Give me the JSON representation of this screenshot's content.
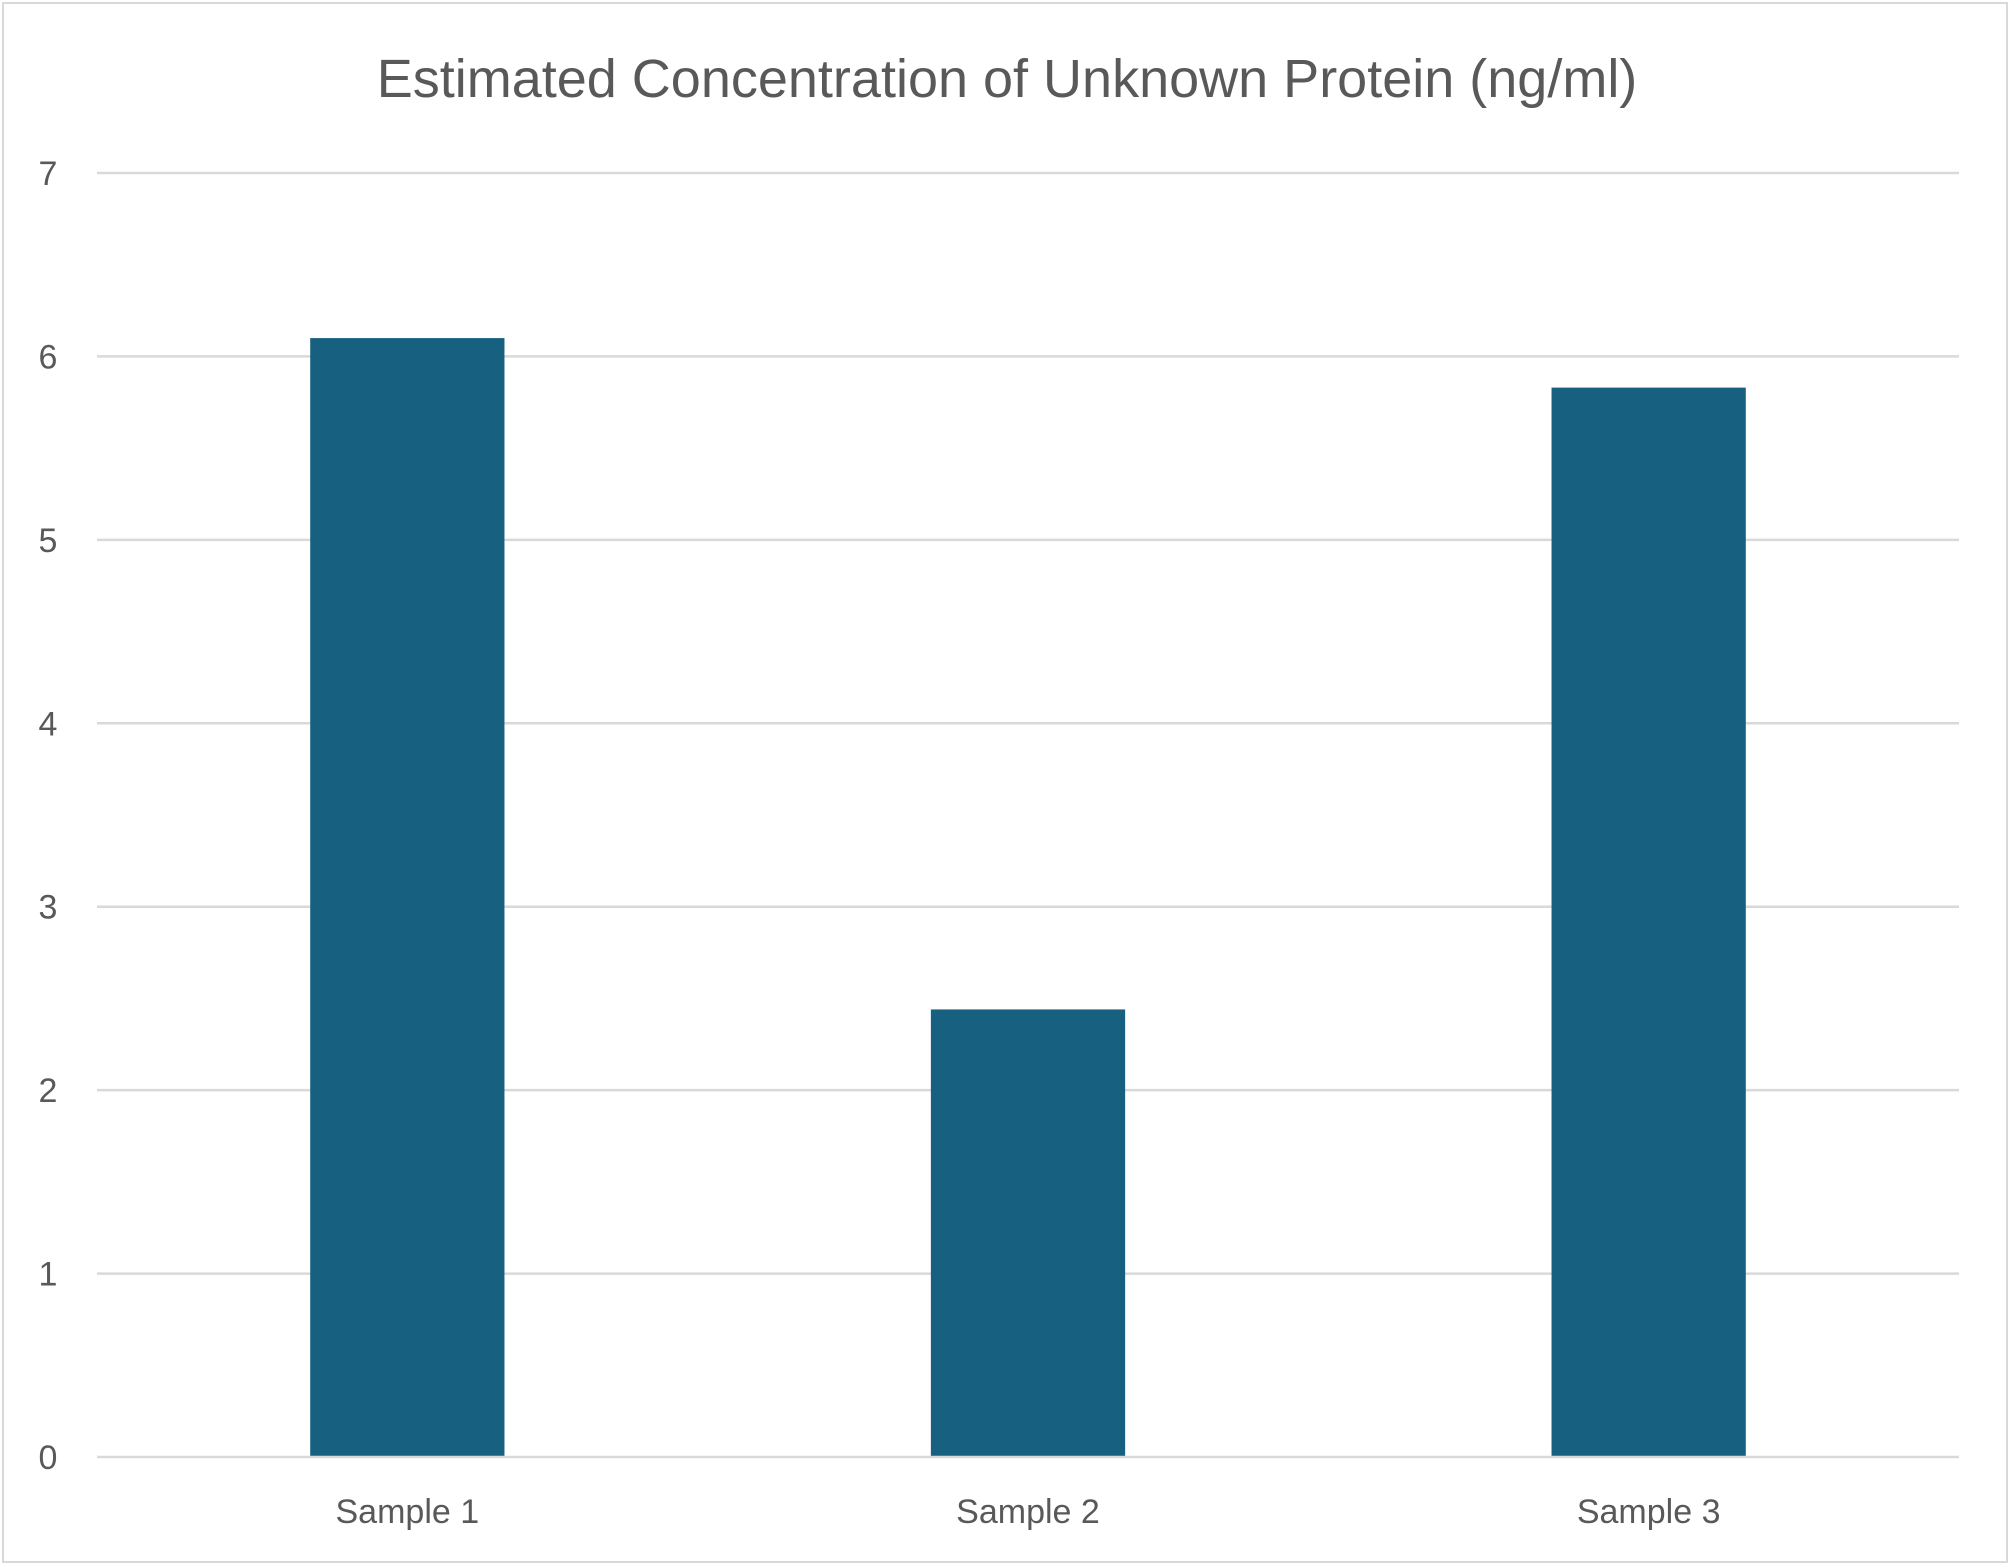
{
  "chart_data": {
    "type": "bar",
    "title": "Estimated Concentration of Unknown Protein (ng/ml)",
    "categories": [
      "Sample 1",
      "Sample 2",
      "Sample 3"
    ],
    "values": [
      6.1,
      2.44,
      5.83
    ],
    "xlabel": "",
    "ylabel": "",
    "ylim": [
      0,
      7
    ],
    "yticks": [
      "0",
      "1",
      "2",
      "3",
      "4",
      "5",
      "6",
      "7"
    ],
    "grid": true,
    "legend": "none",
    "bar_color": "#17607f",
    "grid_color": "#d9d9d9",
    "text_color": "#595959"
  }
}
